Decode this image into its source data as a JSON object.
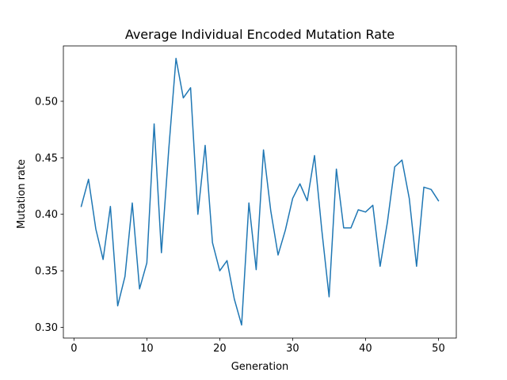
{
  "chart_data": {
    "type": "line",
    "title": "Average Individual Encoded Mutation Rate",
    "xlabel": "Generation",
    "ylabel": "Mutation rate",
    "xlim": [
      -1.45,
      52.45
    ],
    "ylim": [
      0.2905,
      0.549
    ],
    "xticks": [
      0,
      10,
      20,
      30,
      40,
      50
    ],
    "yticks": [
      0.3,
      0.35,
      0.4,
      0.45,
      0.5
    ],
    "ytick_labels": [
      "0.30",
      "0.35",
      "0.40",
      "0.45",
      "0.50"
    ],
    "grid": false,
    "series": [
      {
        "name": "Mutation rate",
        "color": "#1f77b4",
        "x": [
          1,
          2,
          3,
          4,
          5,
          6,
          7,
          8,
          9,
          10,
          11,
          12,
          13,
          14,
          15,
          16,
          17,
          18,
          19,
          20,
          21,
          22,
          23,
          24,
          25,
          26,
          27,
          28,
          29,
          30,
          31,
          32,
          33,
          34,
          35,
          36,
          37,
          38,
          39,
          40,
          41,
          42,
          43,
          44,
          45,
          46,
          47,
          48,
          49,
          50
        ],
        "values": [
          0.407,
          0.431,
          0.387,
          0.36,
          0.407,
          0.319,
          0.345,
          0.41,
          0.334,
          0.357,
          0.48,
          0.366,
          0.457,
          0.538,
          0.503,
          0.512,
          0.4,
          0.461,
          0.375,
          0.35,
          0.359,
          0.325,
          0.302,
          0.41,
          0.351,
          0.457,
          0.403,
          0.364,
          0.386,
          0.414,
          0.427,
          0.412,
          0.452,
          0.386,
          0.327,
          0.44,
          0.388,
          0.388,
          0.404,
          0.402,
          0.408,
          0.354,
          0.393,
          0.442,
          0.448,
          0.414,
          0.354,
          0.424,
          0.422,
          0.412
        ]
      }
    ]
  }
}
